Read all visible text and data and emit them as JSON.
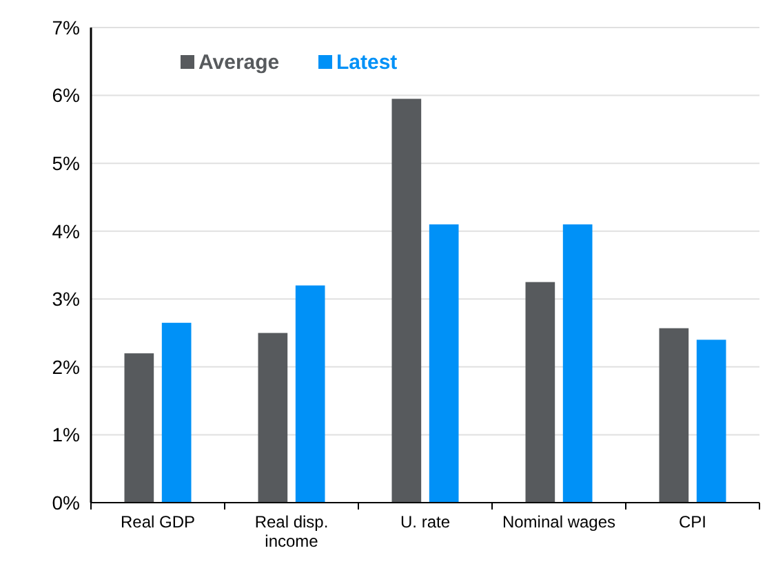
{
  "chart_data": {
    "type": "bar",
    "categories": [
      "Real GDP",
      "Real disp. income",
      "U. rate",
      "Nominal wages",
      "CPI"
    ],
    "series": [
      {
        "name": "Average",
        "color": "#575a5d",
        "values": [
          2.2,
          2.5,
          5.95,
          3.25,
          2.57
        ]
      },
      {
        "name": "Latest",
        "color": "#0091f7",
        "values": [
          2.65,
          3.2,
          4.1,
          4.1,
          2.4
        ]
      }
    ],
    "ylim": [
      0,
      7
    ],
    "yticks": [
      {
        "value": 0,
        "label": "0%"
      },
      {
        "value": 1,
        "label": "1%"
      },
      {
        "value": 2,
        "label": "2%"
      },
      {
        "value": 3,
        "label": "3%"
      },
      {
        "value": 4,
        "label": "4%"
      },
      {
        "value": 5,
        "label": "5%"
      },
      {
        "value": 6,
        "label": "6%"
      },
      {
        "value": 7,
        "label": "7%"
      }
    ],
    "grid": "y",
    "legend": "top left"
  }
}
